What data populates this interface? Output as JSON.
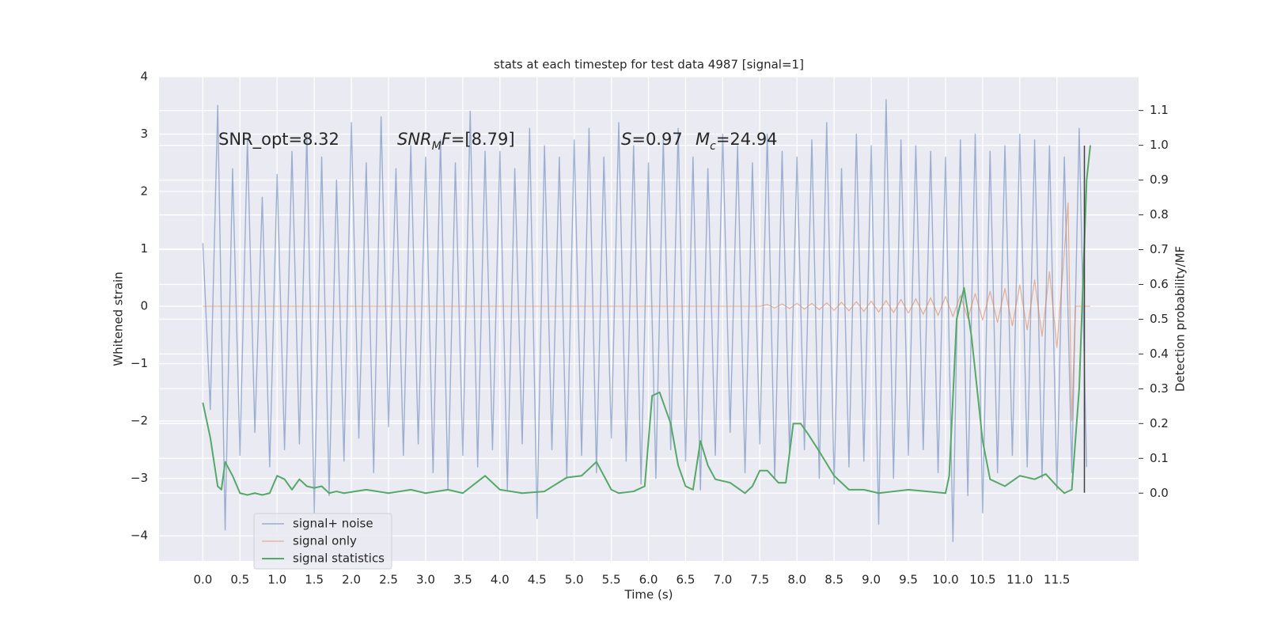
{
  "chart_data": {
    "type": "line",
    "title": "stats at each timestep for test data 4987 [signal=1]",
    "xlabel": "Time (s)",
    "ylabel": "Whitened strain",
    "y2label": "Detection probability/MF",
    "xlim": [
      -0.59,
      12.6
    ],
    "ylim": [
      -4.44,
      4
    ],
    "y2lim": [
      -0.195,
      1.197
    ],
    "xticks": [
      {
        "value": 0,
        "label": "0.0"
      },
      0.5,
      {
        "value": 1,
        "label": "1.0"
      },
      1.5,
      {
        "value": 2,
        "label": "2.0"
      },
      2.5,
      {
        "value": 3,
        "label": "3.0"
      },
      3.5,
      {
        "value": 4,
        "label": "4.0"
      },
      4.5,
      {
        "value": 5,
        "label": "5.0"
      },
      5.5,
      {
        "value": 6,
        "label": "6.0"
      },
      6.5,
      {
        "value": 7,
        "label": "7.0"
      },
      7.5,
      {
        "value": 8,
        "label": "8.0"
      },
      8.5,
      {
        "value": 9,
        "label": "9.0"
      },
      9.5,
      {
        "value": 10,
        "label": "10.0"
      },
      10.5,
      {
        "value": 11,
        "label": "11.0"
      },
      11.5
    ],
    "yticks": [
      {
        "value": -4,
        "label": "−4"
      },
      {
        "value": -3,
        "label": "−3"
      },
      {
        "value": -2,
        "label": "−2"
      },
      {
        "value": -1,
        "label": "−1"
      },
      0,
      1,
      2,
      3,
      4
    ],
    "y2ticks": [
      {
        "value": 0,
        "label": "0.0"
      },
      0.1,
      0.2,
      0.3,
      0.4,
      0.5,
      0.6,
      0.7,
      0.8,
      0.9,
      {
        "value": 1,
        "label": "1.0"
      },
      1.1
    ],
    "grid": true,
    "legend": "lower left",
    "annotations": [
      [
        {
          "text": "SNR_opt=8.32"
        }
      ],
      [
        {
          "text": "SNR",
          "italic": true
        },
        {
          "text": "M",
          "italic": true,
          "sub": true
        },
        {
          "text": "F",
          "italic": true
        },
        {
          "text": "=[8.79]"
        }
      ],
      [
        {
          "text": "S",
          "italic": true
        },
        {
          "text": "=0.97"
        }
      ],
      [
        {
          "text": "M",
          "italic": true
        },
        {
          "text": "c",
          "italic": true,
          "sub": true
        },
        {
          "text": "=24.94"
        }
      ]
    ],
    "series": [
      {
        "name": "signal+ noise",
        "color": "#4c72b0",
        "x": [
          0,
          0.1,
          0.2,
          0.3,
          0.4,
          0.5,
          0.6,
          0.7,
          0.8,
          0.9,
          1,
          1.1,
          1.2,
          1.3,
          1.4,
          1.5,
          1.6,
          1.7,
          1.8,
          1.9,
          2,
          2.1,
          2.2,
          2.3,
          2.4,
          2.5,
          2.6,
          2.7,
          2.8,
          2.9,
          3,
          3.1,
          3.2,
          3.3,
          3.4,
          3.5,
          3.6,
          3.7,
          3.8,
          3.9,
          4,
          4.1,
          4.2,
          4.3,
          4.4,
          4.5,
          4.6,
          4.7,
          4.8,
          4.9,
          5,
          5.1,
          5.2,
          5.3,
          5.4,
          5.5,
          5.6,
          5.7,
          5.8,
          5.9,
          6,
          6.1,
          6.2,
          6.3,
          6.4,
          6.5,
          6.6,
          6.7,
          6.8,
          6.9,
          7,
          7.1,
          7.2,
          7.3,
          7.4,
          7.5,
          7.6,
          7.7,
          7.8,
          7.9,
          8,
          8.1,
          8.2,
          8.3,
          8.4,
          8.5,
          8.6,
          8.7,
          8.8,
          8.9,
          9,
          9.1,
          9.2,
          9.3,
          9.4,
          9.5,
          9.6,
          9.7,
          9.8,
          9.9,
          10,
          10.1,
          10.2,
          10.3,
          10.4,
          10.5,
          10.6,
          10.7,
          10.8,
          10.9,
          11,
          11.1,
          11.2,
          11.3,
          11.4,
          11.5,
          11.6,
          11.7,
          11.8,
          11.9
        ],
        "values": [
          1.1,
          -1.8,
          3.5,
          -3.9,
          2.4,
          -2.6,
          2.9,
          -2.2,
          1.9,
          -2.8,
          2.3,
          -2.5,
          2.7,
          -2.4,
          3.0,
          -3.6,
          2.6,
          -3.3,
          2.2,
          -2.7,
          3.2,
          -2.3,
          2.5,
          -2.9,
          3.3,
          -2.1,
          2.4,
          -2.6,
          2.8,
          -2.4,
          2.6,
          -2.9,
          2.9,
          -3.2,
          2.5,
          -2.6,
          3.4,
          -2.8,
          2.7,
          -2.5,
          2.7,
          -3.2,
          2.4,
          -2.4,
          3.1,
          -3.7,
          2.8,
          -2.5,
          2.6,
          -3.0,
          2.9,
          -2.6,
          3.1,
          -2.9,
          2.6,
          -2.3,
          3.2,
          -2.7,
          2.8,
          -3.1,
          2.5,
          -3.0,
          2.9,
          -2.5,
          3.1,
          -2.7,
          2.6,
          -3.2,
          2.4,
          -2.6,
          3.0,
          -2.2,
          2.8,
          -2.9,
          2.5,
          -2.4,
          3.0,
          -3.0,
          2.7,
          -2.6,
          2.6,
          -2.5,
          2.9,
          -3.0,
          3.2,
          -3.1,
          2.4,
          -2.8,
          3.0,
          -2.7,
          2.8,
          -3.8,
          3.6,
          -3.0,
          2.9,
          -2.6,
          2.8,
          -2.5,
          2.7,
          -2.9,
          2.6,
          -4.1,
          2.9,
          -3.3,
          3.0,
          -3.6,
          2.7,
          -2.9,
          2.8,
          -2.6,
          3.0,
          -2.8,
          2.9,
          -3.0,
          2.8,
          -3.2,
          2.6,
          -2.9,
          3.1,
          -2.8
        ]
      },
      {
        "name": "signal only",
        "color": "#dd8452",
        "x": [
          0,
          7.5,
          7.6,
          7.7,
          7.8,
          7.9,
          8,
          8.1,
          8.2,
          8.3,
          8.4,
          8.5,
          8.6,
          8.7,
          8.8,
          8.9,
          9,
          9.1,
          9.2,
          9.3,
          9.4,
          9.5,
          9.6,
          9.7,
          9.8,
          9.9,
          10,
          10.1,
          10.2,
          10.3,
          10.4,
          10.5,
          10.6,
          10.7,
          10.8,
          10.9,
          11,
          11.1,
          11.2,
          11.3,
          11.4,
          11.5,
          11.6,
          11.65,
          11.7,
          11.75,
          11.95
        ],
        "values": [
          0,
          0,
          0.03,
          -0.03,
          0.04,
          -0.04,
          0.05,
          -0.05,
          0.05,
          -0.06,
          0.06,
          -0.07,
          0.07,
          -0.08,
          0.08,
          -0.09,
          0.09,
          -0.1,
          0.1,
          -0.11,
          0.12,
          -0.12,
          0.13,
          -0.14,
          0.15,
          -0.16,
          0.17,
          -0.18,
          0.19,
          -0.21,
          0.22,
          -0.24,
          0.26,
          -0.28,
          0.31,
          -0.34,
          0.37,
          -0.41,
          0.46,
          -0.52,
          0.6,
          -0.72,
          0.95,
          1.8,
          -2.0,
          0,
          0
        ]
      },
      {
        "name": "signal statistics",
        "color": "#55a868",
        "axis": "y2",
        "x": [
          0,
          0.1,
          0.2,
          0.25,
          0.3,
          0.4,
          0.5,
          0.6,
          0.7,
          0.8,
          0.9,
          1,
          1.1,
          1.2,
          1.3,
          1.4,
          1.5,
          1.6,
          1.7,
          1.8,
          1.9,
          2.2,
          2.5,
          2.8,
          3,
          3.3,
          3.5,
          3.8,
          4,
          4.3,
          4.6,
          4.9,
          5.1,
          5.3,
          5.5,
          5.6,
          5.8,
          5.95,
          6.05,
          6.15,
          6.3,
          6.4,
          6.5,
          6.6,
          6.7,
          6.8,
          6.9,
          7.1,
          7.3,
          7.4,
          7.5,
          7.6,
          7.75,
          7.85,
          7.95,
          8.05,
          8.15,
          8.3,
          8.5,
          8.7,
          8.9,
          9.1,
          9.5,
          10,
          10.05,
          10.15,
          10.25,
          10.35,
          10.5,
          10.6,
          10.8,
          11,
          11.2,
          11.35,
          11.5,
          11.6,
          11.7,
          11.8,
          11.9,
          11.95
        ],
        "values": [
          0.26,
          0.16,
          0.02,
          0.01,
          0.09,
          0.05,
          0,
          -0.005,
          0,
          -0.005,
          0,
          0.05,
          0.04,
          0.01,
          0.04,
          0.02,
          0.015,
          0.02,
          0,
          0.005,
          0,
          0.01,
          0,
          0.01,
          0,
          0.01,
          0,
          0.05,
          0.01,
          0,
          0.005,
          0.045,
          0.05,
          0.09,
          0.01,
          0,
          0.005,
          0.02,
          0.28,
          0.29,
          0.2,
          0.08,
          0.02,
          0.01,
          0.15,
          0.08,
          0.04,
          0.03,
          0,
          0.02,
          0.065,
          0.065,
          0.03,
          0.03,
          0.2,
          0.2,
          0.17,
          0.12,
          0.05,
          0.01,
          0.01,
          0,
          0.01,
          0,
          0.05,
          0.5,
          0.59,
          0.45,
          0.15,
          0.04,
          0.02,
          0.05,
          0.04,
          0.055,
          0.02,
          0,
          0.01,
          0.3,
          0.9,
          1.0
        ]
      }
    ],
    "vline": {
      "x": 11.87,
      "y": [
        -3.25,
        2.8
      ],
      "color": "#404040"
    }
  }
}
